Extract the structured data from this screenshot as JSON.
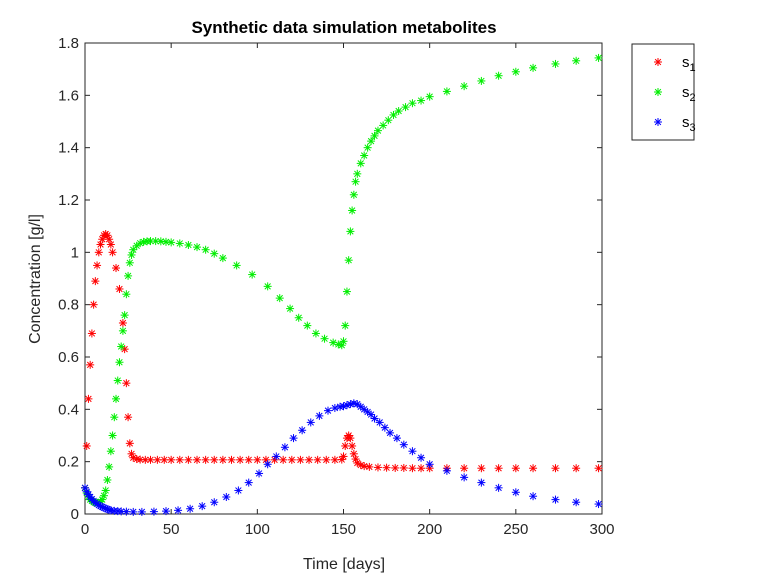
{
  "chart_data": {
    "type": "scatter",
    "title": "Synthetic data simulation metabolites",
    "xlabel": "Time [days]",
    "ylabel": "Concentration [g/l]",
    "xlim": [
      0,
      300
    ],
    "ylim": [
      0,
      1.8
    ],
    "xticks": [
      "0",
      "50",
      "100",
      "150",
      "200",
      "250",
      "300"
    ],
    "yticks": [
      "0",
      "0.2",
      "0.4",
      "0.6",
      "0.8",
      "1",
      "1.2",
      "1.4",
      "1.6",
      "1.8"
    ],
    "marker": "*",
    "grid": false,
    "legend_position": "outside-top-right",
    "series": [
      {
        "name": "s",
        "subscript": "1",
        "color": "#ff0000",
        "points": [
          [
            0,
            0.1
          ],
          [
            1,
            0.26
          ],
          [
            2,
            0.44
          ],
          [
            3,
            0.57
          ],
          [
            4,
            0.69
          ],
          [
            5,
            0.8
          ],
          [
            6,
            0.89
          ],
          [
            7,
            0.95
          ],
          [
            8,
            1.0
          ],
          [
            9,
            1.03
          ],
          [
            10,
            1.05
          ],
          [
            11,
            1.065
          ],
          [
            12,
            1.07
          ],
          [
            13,
            1.065
          ],
          [
            14,
            1.05
          ],
          [
            15,
            1.03
          ],
          [
            16,
            1.0
          ],
          [
            18,
            0.94
          ],
          [
            20,
            0.86
          ],
          [
            22,
            0.73
          ],
          [
            23,
            0.63
          ],
          [
            24,
            0.5
          ],
          [
            25,
            0.37
          ],
          [
            26,
            0.27
          ],
          [
            27,
            0.23
          ],
          [
            28,
            0.215
          ],
          [
            30,
            0.21
          ],
          [
            32,
            0.208
          ],
          [
            35,
            0.207
          ],
          [
            38,
            0.207
          ],
          [
            42,
            0.207
          ],
          [
            46,
            0.207
          ],
          [
            50,
            0.207
          ],
          [
            55,
            0.207
          ],
          [
            60,
            0.207
          ],
          [
            65,
            0.207
          ],
          [
            70,
            0.207
          ],
          [
            75,
            0.207
          ],
          [
            80,
            0.207
          ],
          [
            85,
            0.207
          ],
          [
            90,
            0.207
          ],
          [
            95,
            0.207
          ],
          [
            100,
            0.207
          ],
          [
            105,
            0.207
          ],
          [
            110,
            0.207
          ],
          [
            115,
            0.207
          ],
          [
            120,
            0.207
          ],
          [
            125,
            0.207
          ],
          [
            130,
            0.207
          ],
          [
            135,
            0.207
          ],
          [
            140,
            0.207
          ],
          [
            145,
            0.207
          ],
          [
            149,
            0.208
          ],
          [
            150,
            0.22
          ],
          [
            151,
            0.26
          ],
          [
            152,
            0.29
          ],
          [
            153,
            0.3
          ],
          [
            154,
            0.29
          ],
          [
            155,
            0.26
          ],
          [
            156,
            0.23
          ],
          [
            157,
            0.21
          ],
          [
            158,
            0.195
          ],
          [
            160,
            0.187
          ],
          [
            162,
            0.183
          ],
          [
            165,
            0.18
          ],
          [
            170,
            0.178
          ],
          [
            175,
            0.177
          ],
          [
            180,
            0.176
          ],
          [
            185,
            0.176
          ],
          [
            190,
            0.175
          ],
          [
            195,
            0.175
          ],
          [
            200,
            0.175
          ],
          [
            210,
            0.175
          ],
          [
            220,
            0.175
          ],
          [
            230,
            0.175
          ],
          [
            240,
            0.175
          ],
          [
            250,
            0.175
          ],
          [
            260,
            0.175
          ],
          [
            273,
            0.175
          ],
          [
            285,
            0.175
          ],
          [
            298,
            0.175
          ]
        ]
      },
      {
        "name": "s",
        "subscript": "2",
        "color": "#00ee00",
        "points": [
          [
            0,
            0.1
          ],
          [
            1,
            0.08
          ],
          [
            2,
            0.065
          ],
          [
            3,
            0.055
          ],
          [
            4,
            0.05
          ],
          [
            5,
            0.045
          ],
          [
            6,
            0.043
          ],
          [
            7,
            0.042
          ],
          [
            8,
            0.043
          ],
          [
            9,
            0.047
          ],
          [
            10,
            0.055
          ],
          [
            11,
            0.07
          ],
          [
            12,
            0.09
          ],
          [
            13,
            0.13
          ],
          [
            14,
            0.18
          ],
          [
            15,
            0.24
          ],
          [
            16,
            0.3
          ],
          [
            17,
            0.37
          ],
          [
            18,
            0.44
          ],
          [
            19,
            0.51
          ],
          [
            20,
            0.58
          ],
          [
            21,
            0.64
          ],
          [
            22,
            0.7
          ],
          [
            23,
            0.76
          ],
          [
            24,
            0.84
          ],
          [
            25,
            0.91
          ],
          [
            26,
            0.96
          ],
          [
            27,
            0.99
          ],
          [
            28,
            1.01
          ],
          [
            30,
            1.025
          ],
          [
            32,
            1.035
          ],
          [
            34,
            1.04
          ],
          [
            36,
            1.042
          ],
          [
            38,
            1.043
          ],
          [
            41,
            1.043
          ],
          [
            44,
            1.042
          ],
          [
            47,
            1.04
          ],
          [
            50,
            1.038
          ],
          [
            55,
            1.034
          ],
          [
            60,
            1.028
          ],
          [
            65,
            1.02
          ],
          [
            70,
            1.01
          ],
          [
            75,
            0.995
          ],
          [
            80,
            0.978
          ],
          [
            88,
            0.95
          ],
          [
            97,
            0.915
          ],
          [
            106,
            0.87
          ],
          [
            113,
            0.825
          ],
          [
            119,
            0.785
          ],
          [
            124,
            0.75
          ],
          [
            129,
            0.72
          ],
          [
            134,
            0.69
          ],
          [
            139,
            0.67
          ],
          [
            144,
            0.655
          ],
          [
            147,
            0.648
          ],
          [
            149,
            0.645
          ],
          [
            150,
            0.66
          ],
          [
            151,
            0.72
          ],
          [
            152,
            0.85
          ],
          [
            153,
            0.97
          ],
          [
            154,
            1.08
          ],
          [
            155,
            1.16
          ],
          [
            156,
            1.22
          ],
          [
            157,
            1.27
          ],
          [
            158,
            1.3
          ],
          [
            160,
            1.34
          ],
          [
            162,
            1.37
          ],
          [
            164,
            1.4
          ],
          [
            166,
            1.425
          ],
          [
            168,
            1.445
          ],
          [
            170,
            1.465
          ],
          [
            173,
            1.485
          ],
          [
            176,
            1.505
          ],
          [
            179,
            1.525
          ],
          [
            182,
            1.54
          ],
          [
            186,
            1.555
          ],
          [
            190,
            1.57
          ],
          [
            195,
            1.58
          ],
          [
            200,
            1.595
          ],
          [
            210,
            1.615
          ],
          [
            220,
            1.635
          ],
          [
            230,
            1.655
          ],
          [
            240,
            1.675
          ],
          [
            250,
            1.69
          ],
          [
            260,
            1.705
          ],
          [
            273,
            1.72
          ],
          [
            285,
            1.732
          ],
          [
            298,
            1.743
          ]
        ]
      },
      {
        "name": "s",
        "subscript": "3",
        "color": "#0000ff",
        "points": [
          [
            0,
            0.1
          ],
          [
            1,
            0.085
          ],
          [
            2,
            0.075
          ],
          [
            3,
            0.065
          ],
          [
            4,
            0.057
          ],
          [
            5,
            0.05
          ],
          [
            6,
            0.044
          ],
          [
            7,
            0.039
          ],
          [
            8,
            0.034
          ],
          [
            9,
            0.03
          ],
          [
            10,
            0.027
          ],
          [
            11,
            0.024
          ],
          [
            12,
            0.021
          ],
          [
            13,
            0.018
          ],
          [
            14,
            0.016
          ],
          [
            15,
            0.014
          ],
          [
            17,
            0.012
          ],
          [
            19,
            0.011
          ],
          [
            21,
            0.01
          ],
          [
            24,
            0.009
          ],
          [
            28,
            0.008
          ],
          [
            33,
            0.008
          ],
          [
            40,
            0.009
          ],
          [
            47,
            0.011
          ],
          [
            54,
            0.014
          ],
          [
            61,
            0.02
          ],
          [
            68,
            0.03
          ],
          [
            75,
            0.045
          ],
          [
            82,
            0.065
          ],
          [
            89,
            0.09
          ],
          [
            95,
            0.12
          ],
          [
            101,
            0.155
          ],
          [
            106,
            0.19
          ],
          [
            111,
            0.22
          ],
          [
            116,
            0.255
          ],
          [
            121,
            0.29
          ],
          [
            126,
            0.32
          ],
          [
            131,
            0.35
          ],
          [
            136,
            0.375
          ],
          [
            141,
            0.395
          ],
          [
            145,
            0.405
          ],
          [
            148,
            0.41
          ],
          [
            150,
            0.412
          ],
          [
            152,
            0.416
          ],
          [
            154,
            0.42
          ],
          [
            156,
            0.423
          ],
          [
            158,
            0.42
          ],
          [
            160,
            0.41
          ],
          [
            162,
            0.4
          ],
          [
            164,
            0.39
          ],
          [
            166,
            0.38
          ],
          [
            168,
            0.365
          ],
          [
            171,
            0.35
          ],
          [
            174,
            0.33
          ],
          [
            177,
            0.31
          ],
          [
            181,
            0.29
          ],
          [
            185,
            0.265
          ],
          [
            190,
            0.24
          ],
          [
            195,
            0.215
          ],
          [
            200,
            0.19
          ],
          [
            210,
            0.165
          ],
          [
            220,
            0.14
          ],
          [
            230,
            0.12
          ],
          [
            240,
            0.1
          ],
          [
            250,
            0.083
          ],
          [
            260,
            0.068
          ],
          [
            273,
            0.055
          ],
          [
            285,
            0.045
          ],
          [
            298,
            0.038
          ]
        ]
      }
    ]
  }
}
